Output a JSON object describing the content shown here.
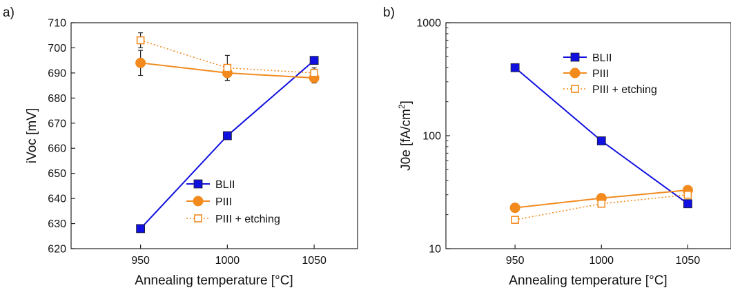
{
  "chart_data": [
    {
      "panel_label": "a)",
      "type": "line",
      "xlabel": "Annealing temperature [°C]",
      "ylabel": "iVoc [mV]",
      "xlim": [
        910,
        1075
      ],
      "ylim": [
        620,
        710
      ],
      "yscale": "linear",
      "x_ticks": [
        950,
        1000,
        1050
      ],
      "y_ticks": [
        620,
        630,
        640,
        650,
        660,
        670,
        680,
        690,
        700,
        710
      ],
      "grid": false,
      "legend_position": "bottom-right",
      "series": [
        {
          "name": "BLII",
          "color": "#1010e0",
          "marker": "filled-square",
          "line": "solid",
          "x": [
            950,
            1000,
            1050
          ],
          "values": [
            628,
            665,
            695
          ],
          "err": [
            1,
            1,
            1
          ]
        },
        {
          "name": "PIII",
          "color": "#f28a1e",
          "marker": "filled-circle",
          "line": "solid",
          "x": [
            950,
            1000,
            1050
          ],
          "values": [
            694,
            690,
            688
          ],
          "err": [
            5,
            3,
            2
          ]
        },
        {
          "name": "PIII + etching",
          "color": "#f28a1e",
          "marker": "open-square",
          "line": "dotted",
          "x": [
            950,
            1000,
            1050
          ],
          "values": [
            703,
            692,
            690
          ],
          "err": [
            3,
            5,
            2
          ]
        }
      ]
    },
    {
      "panel_label": "b)",
      "type": "line",
      "xlabel": "Annealing temperature [°C]",
      "ylabel": "J0e [fA/cm",
      "ylabel_sup": "2",
      "ylabel_end": "]",
      "xlim": [
        910,
        1075
      ],
      "ylim": [
        10,
        1000
      ],
      "yscale": "log",
      "x_ticks": [
        950,
        1000,
        1050
      ],
      "y_ticks": [
        10,
        100,
        1000
      ],
      "grid": false,
      "legend_position": "top-right",
      "series": [
        {
          "name": "BLII",
          "color": "#1010e0",
          "marker": "filled-square",
          "line": "solid",
          "x": [
            950,
            1000,
            1050
          ],
          "values": [
            400,
            90,
            25
          ]
        },
        {
          "name": "PIII",
          "color": "#f28a1e",
          "marker": "filled-circle",
          "line": "solid",
          "x": [
            950,
            1000,
            1050
          ],
          "values": [
            23,
            28,
            33
          ]
        },
        {
          "name": "PIII + etching",
          "color": "#f28a1e",
          "marker": "open-square",
          "line": "dotted",
          "x": [
            950,
            1000,
            1050
          ],
          "values": [
            18,
            25,
            30
          ]
        }
      ]
    }
  ]
}
